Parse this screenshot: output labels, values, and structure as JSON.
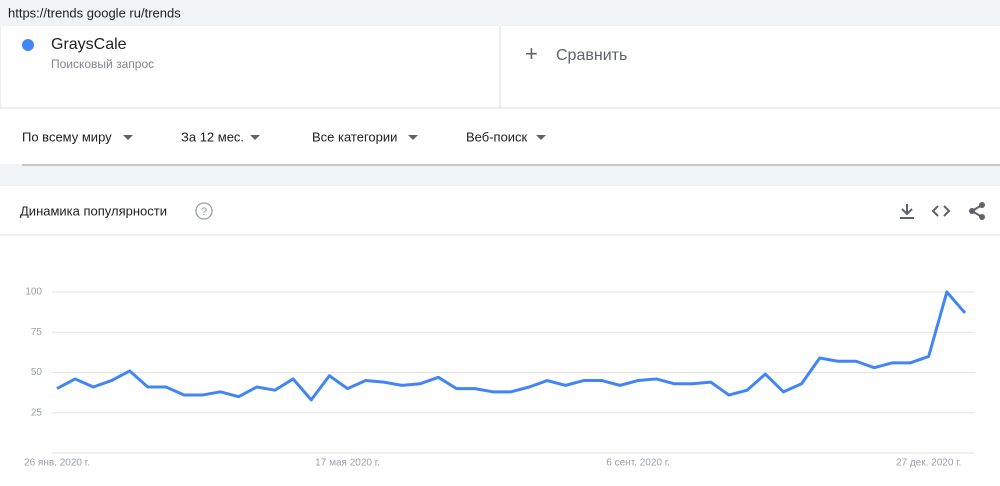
{
  "url": "https://trends google ru/trends",
  "search_term": {
    "subtitle": "Поисковый запрос"
  },
  "compare": "Сравнить",
  "filters": [
    "По всему миру",
    "За 12 мес.",
    "Все категории",
    "Веб-поиск"
  ],
  "chart_data": {
    "type": "line",
    "title": "Динамика популярности",
    "categories": [
      "26 янв. 2020 г.",
      null,
      null,
      null,
      null,
      null,
      null,
      null,
      null,
      null,
      null,
      null,
      null,
      null,
      null,
      null,
      "17 мая 2020 г.",
      null,
      null,
      null,
      null,
      null,
      null,
      null,
      null,
      null,
      null,
      null,
      null,
      null,
      null,
      null,
      "6 сент. 2020 г.",
      null,
      null,
      null,
      null,
      null,
      null,
      null,
      null,
      null,
      null,
      null,
      null,
      null,
      null,
      null,
      "27 дек. 2020 г.",
      null,
      null
    ],
    "series": [
      {
        "name": "GraysCale",
        "color": "#4285f4",
        "values": [
          40,
          46,
          41,
          45,
          51,
          41,
          41,
          36,
          36,
          38,
          35,
          41,
          39,
          46,
          33,
          48,
          40,
          45,
          44,
          42,
          43,
          47,
          40,
          40,
          38,
          38,
          41,
          45,
          42,
          45,
          45,
          42,
          45,
          46,
          43,
          43,
          44,
          36,
          39,
          49,
          38,
          43,
          59,
          57,
          57,
          53,
          56,
          56,
          60,
          100,
          87
        ]
      }
    ],
    "ylim": [
      0,
      100
    ],
    "yticks": [
      25,
      50,
      75,
      100
    ],
    "grid": true
  }
}
